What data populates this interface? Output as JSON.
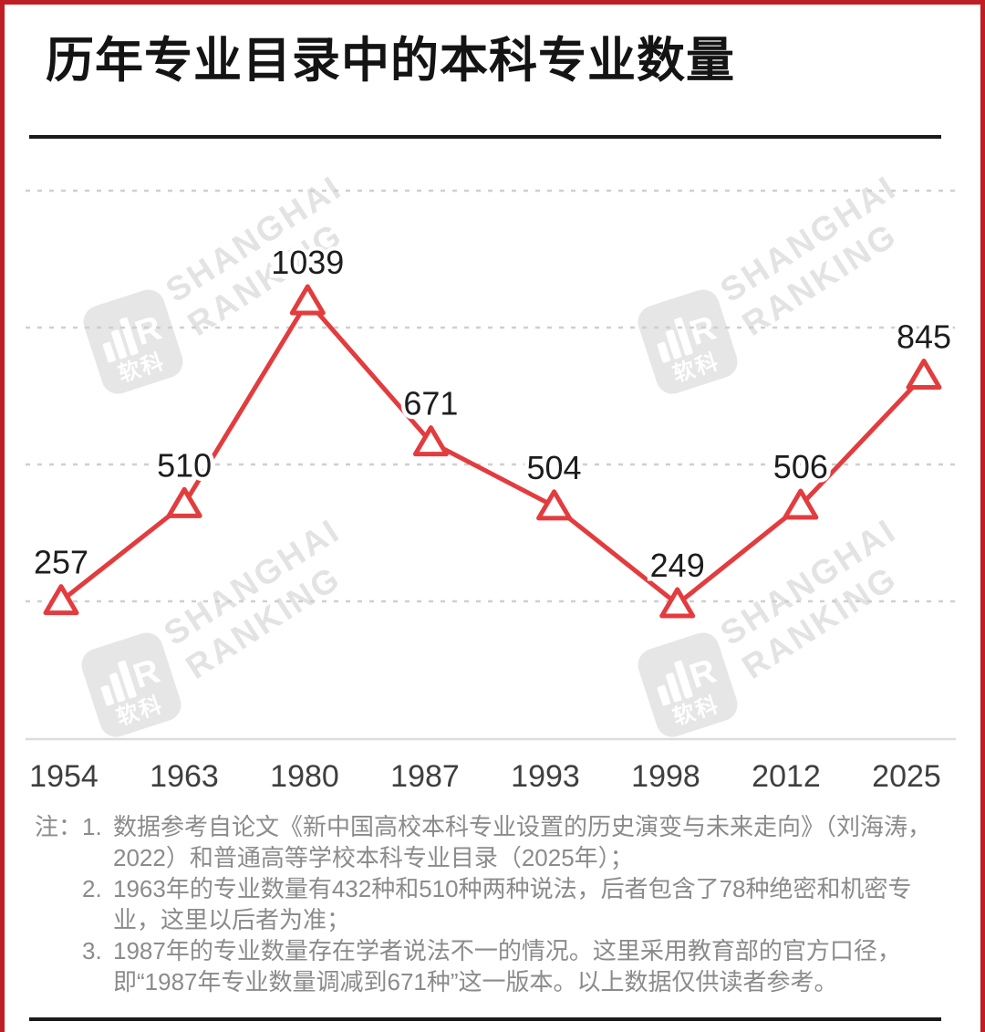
{
  "title": "历年专业目录中的本科专业数量",
  "watermark": {
    "line1": "SHANGHAI",
    "line2": "RANKING",
    "logo_text": "软科",
    "logo_letter": "R"
  },
  "notes": {
    "prefix": "注：",
    "items": [
      {
        "num": "1.",
        "text": "数据参考自论文《新中国高校本科专业设置的历史演变与未来走向》（刘海涛，2022）和普通高等学校本科专业目录（2025年）；"
      },
      {
        "num": "2.",
        "text": "1963年的专业数量有432种和510种两种说法，后者包含了78种绝密和机密专业，这里以后者为准；"
      },
      {
        "num": "3.",
        "text": "1987年的专业数量存在学者说法不一的情况。这里采用教育部的官方口径，即“1987年专业数量调减到671种”这一版本。以上数据仅供读者参考。"
      }
    ]
  },
  "chart_data": {
    "type": "line",
    "title": "历年专业目录中的本科专业数量",
    "categories": [
      "1954",
      "1963",
      "1980",
      "1987",
      "1993",
      "1998",
      "2012",
      "2025"
    ],
    "values": [
      257,
      510,
      1039,
      671,
      504,
      249,
      506,
      845
    ],
    "xlabel": "",
    "ylabel": "",
    "marker": "hollow-triangle-up",
    "data_labels": true,
    "grid": "horizontal-dashed",
    "gridline_count": 4,
    "legend": "none",
    "ylim": [
      0,
      1200
    ]
  },
  "colors": {
    "line_red": "#e33c3e",
    "frame_red": "#bf1e24",
    "grid_gray": "#cfcfcf",
    "axis_gray": "#dcdcdc",
    "value_label": "#1d1d1d",
    "tick_label": "#3f3f3f",
    "note_gray": "#8b8b8b",
    "title_black": "#141414",
    "watermark_gray": "#e3e3e3"
  }
}
